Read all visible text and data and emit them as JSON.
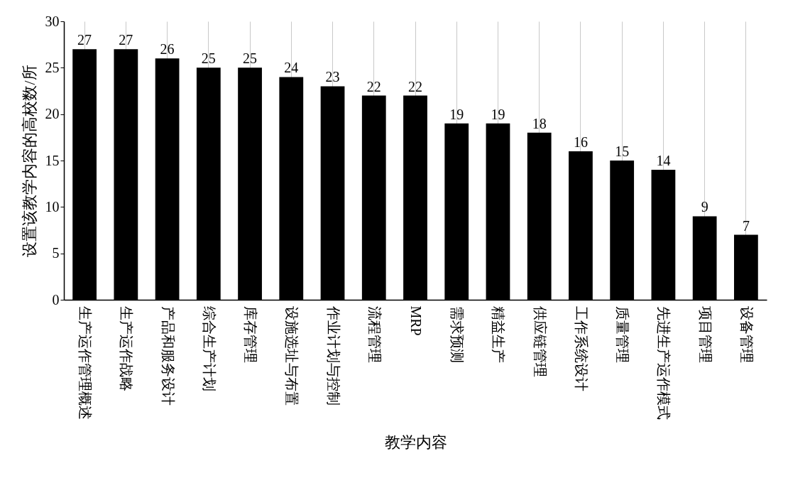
{
  "chart_data": {
    "type": "bar",
    "xlabel": "教学内容",
    "ylabel": "设置该教学内容的高校数/所",
    "categories": [
      "生产运作管理概述",
      "生产运作战略",
      "产品和服务设计",
      "综合生产计划",
      "库存管理",
      "设施选址与布置",
      "作业计划与控制",
      "流程管理",
      "MRP",
      "需求预测",
      "精益生产",
      "供应链管理",
      "工作系统设计",
      "质量管理",
      "先进生产运作模式",
      "项目管理",
      "设备管理"
    ],
    "values": [
      27,
      27,
      26,
      25,
      25,
      24,
      23,
      22,
      22,
      19,
      19,
      18,
      16,
      15,
      14,
      9,
      7
    ],
    "color": "#000000",
    "ylim": [
      0,
      30
    ],
    "yticks": [
      0,
      5,
      10,
      15,
      20,
      25,
      30
    ],
    "grid": "x",
    "data_labels": true
  }
}
